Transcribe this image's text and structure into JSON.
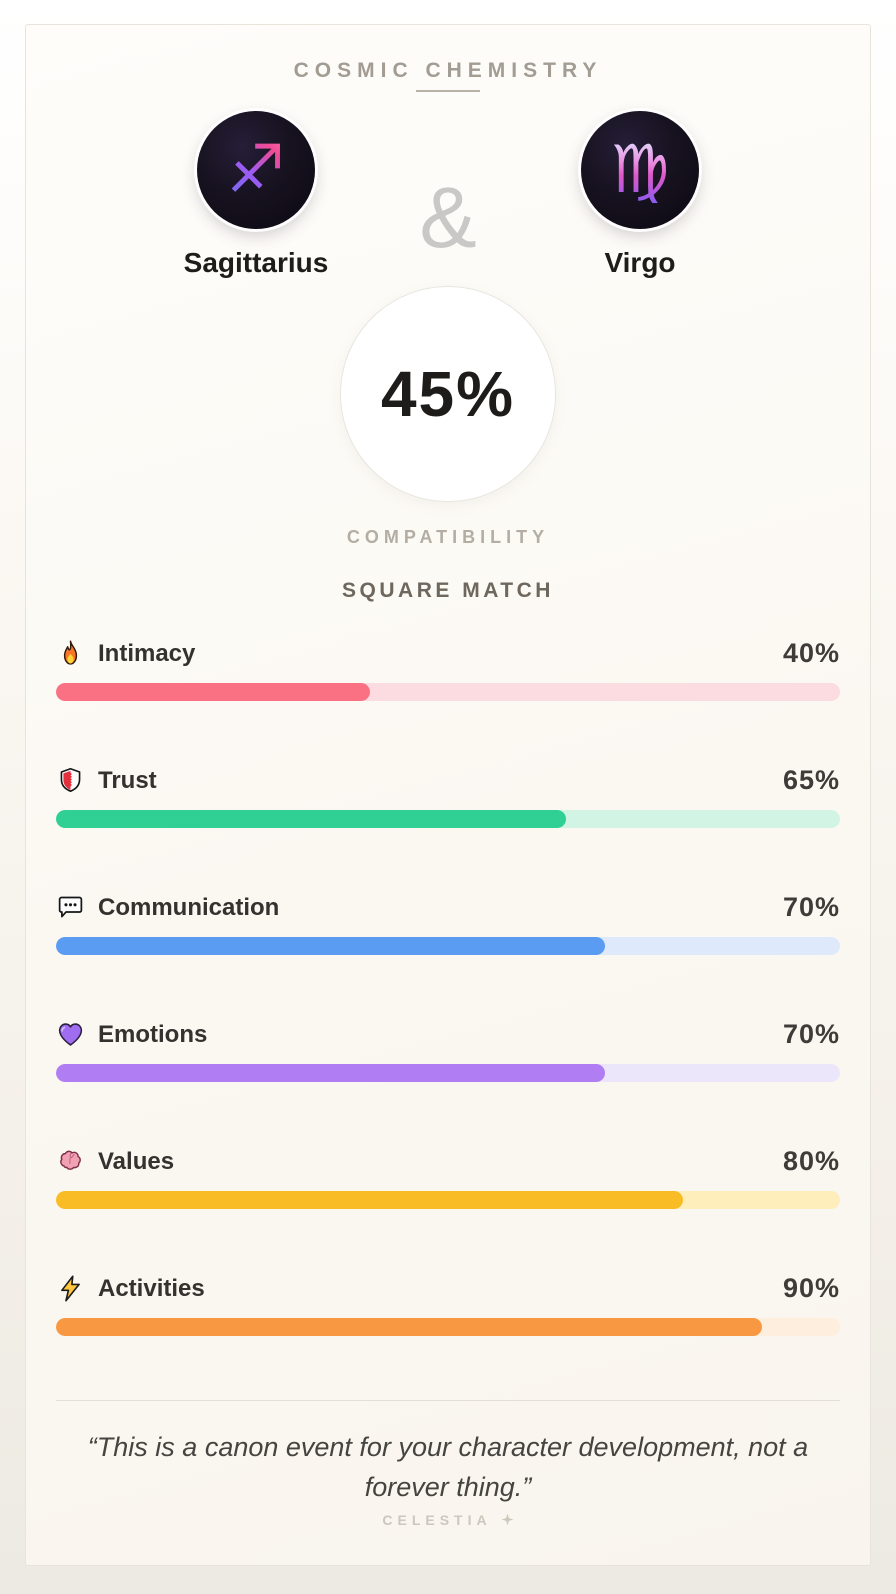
{
  "header": {
    "title": "COSMIC CHEMISTRY"
  },
  "signs": {
    "left": {
      "name": "Sagittarius",
      "symbol": "♐",
      "icon": "sagittarius-icon"
    },
    "separator": "&",
    "right": {
      "name": "Virgo",
      "symbol": "♍",
      "icon": "virgo-icon"
    }
  },
  "score": {
    "value": "45%",
    "label": "COMPATIBILITY"
  },
  "match_type": "SQUARE MATCH",
  "stats": [
    {
      "icon": "flame-icon",
      "label": "Intimacy",
      "value": 40,
      "value_label": "40%",
      "color": "#fa7183",
      "track": "#fcdce1"
    },
    {
      "icon": "shield-icon",
      "label": "Trust",
      "value": 65,
      "value_label": "65%",
      "color": "#30cf94",
      "track": "#d2f4e4"
    },
    {
      "icon": "speech-bubble-icon",
      "label": "Communication",
      "value": 70,
      "value_label": "70%",
      "color": "#5a9cf1",
      "track": "#deeafb"
    },
    {
      "icon": "purple-heart-icon",
      "label": "Emotions",
      "value": 70,
      "value_label": "70%",
      "color": "#b07df2",
      "track": "#ece6fa"
    },
    {
      "icon": "brain-icon",
      "label": "Values",
      "value": 80,
      "value_label": "80%",
      "color": "#f9bc25",
      "track": "#fdeebb"
    },
    {
      "icon": "lightning-icon",
      "label": "Activities",
      "value": 90,
      "value_label": "90%",
      "color": "#f99843",
      "track": "#fdeedd"
    }
  ],
  "quote": "“This is a canon event for your character development, not a forever thing.”",
  "footer": {
    "brand": "CELESTIA",
    "sparkle_icon": "four-pointed-star-icon"
  }
}
